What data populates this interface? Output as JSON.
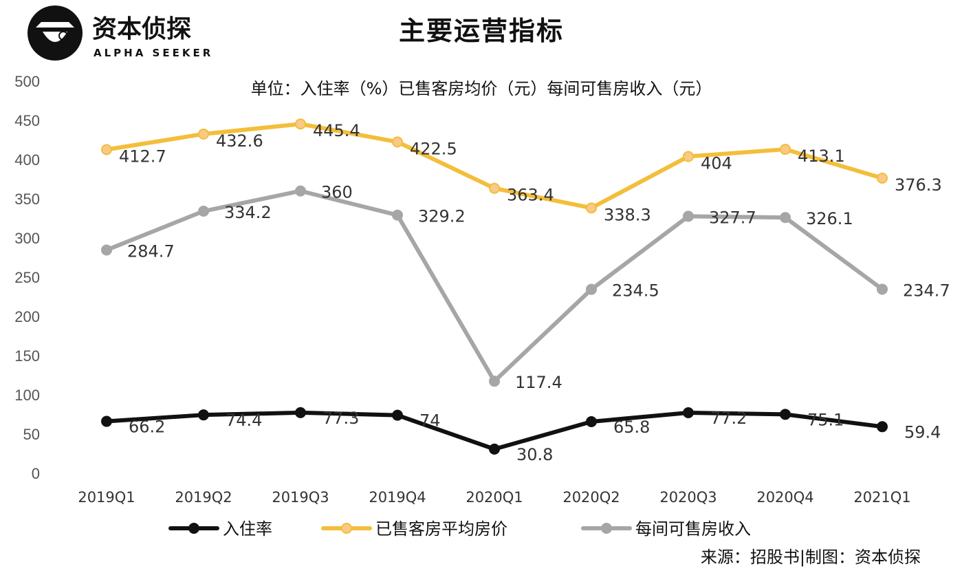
{
  "brand": {
    "name": "资本侦探",
    "tagline": "ALPHA SEEKER"
  },
  "title": "主要运营指标",
  "source": "来源：招股书|制图：资本侦探",
  "chart_data": {
    "type": "line",
    "subtitle": "单位：入住率（%）已售客房均价（元）每间可售房收入（元）",
    "categories": [
      "2019Q1",
      "2019Q2",
      "2019Q3",
      "2019Q4",
      "2020Q1",
      "2020Q2",
      "2020Q3",
      "2020Q4",
      "2021Q1"
    ],
    "ylim": [
      0,
      500
    ],
    "yticks": [
      0,
      50,
      100,
      150,
      200,
      250,
      300,
      350,
      400,
      450,
      500
    ],
    "grid": false,
    "legend_position": "bottom",
    "series": [
      {
        "name": "入住率",
        "color": "#111111",
        "marker_fill": "#111111",
        "values": [
          66.2,
          74.4,
          77.3,
          74,
          30.8,
          65.8,
          77.2,
          75.1,
          59.4
        ]
      },
      {
        "name": "已售客房平均房价",
        "color": "#F3BE3A",
        "marker_fill": "#F9C98A",
        "values": [
          412.7,
          432.6,
          445.4,
          422.5,
          363.4,
          338.3,
          404,
          413.1,
          376.3
        ]
      },
      {
        "name": "每间可售房收入",
        "color": "#A6A6A6",
        "marker_fill": "#A6A6A6",
        "values": [
          284.7,
          334.2,
          360,
          329.2,
          117.4,
          234.5,
          327.7,
          326.1,
          234.7
        ]
      }
    ]
  }
}
